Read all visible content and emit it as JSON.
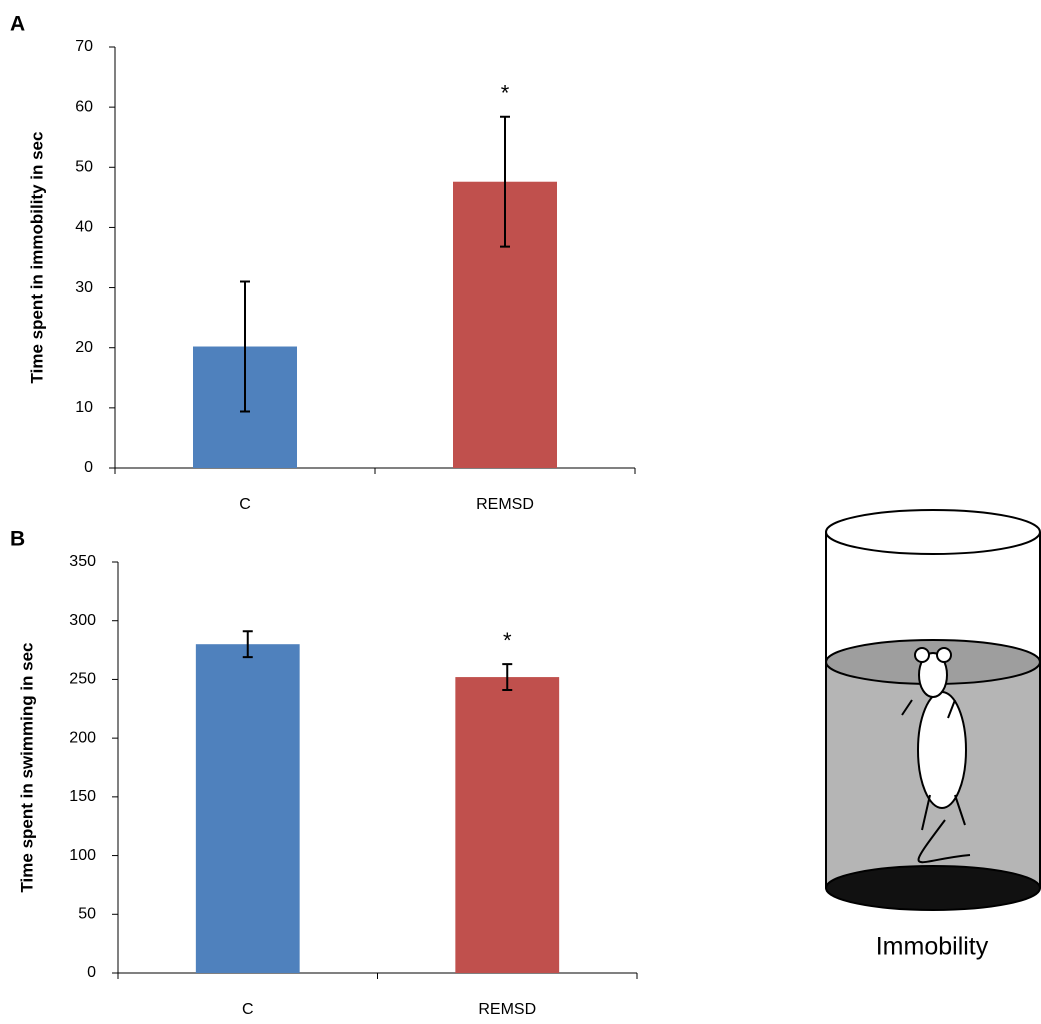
{
  "chart_data": [
    {
      "type": "bar",
      "panel_label": "A",
      "y_label": "Time spent in immobility in sec",
      "categories": [
        "C",
        "REMSD"
      ],
      "series": [
        {
          "colors": [
            "#4f81bd",
            "#c0504d"
          ],
          "values": [
            20.2,
            47.6
          ],
          "errors": [
            10.8,
            10.8
          ],
          "value_annotations": [
            null,
            "*"
          ]
        }
      ],
      "ylim": [
        0,
        70
      ],
      "yticks": [
        0,
        10,
        20,
        30,
        40,
        50,
        60,
        70
      ]
    },
    {
      "type": "bar",
      "panel_label": "B",
      "y_label": "Time spent in swimming in sec",
      "categories": [
        "C",
        "REMSD"
      ],
      "series": [
        {
          "colors": [
            "#4f81bd",
            "#c0504d"
          ],
          "values": [
            280,
            252
          ],
          "errors": [
            11,
            11
          ],
          "value_annotations": [
            null,
            "*"
          ]
        }
      ],
      "ylim": [
        0,
        350
      ],
      "yticks": [
        0,
        50,
        100,
        150,
        200,
        250,
        300,
        350
      ]
    }
  ],
  "illustration": {
    "label": "Immobility"
  }
}
